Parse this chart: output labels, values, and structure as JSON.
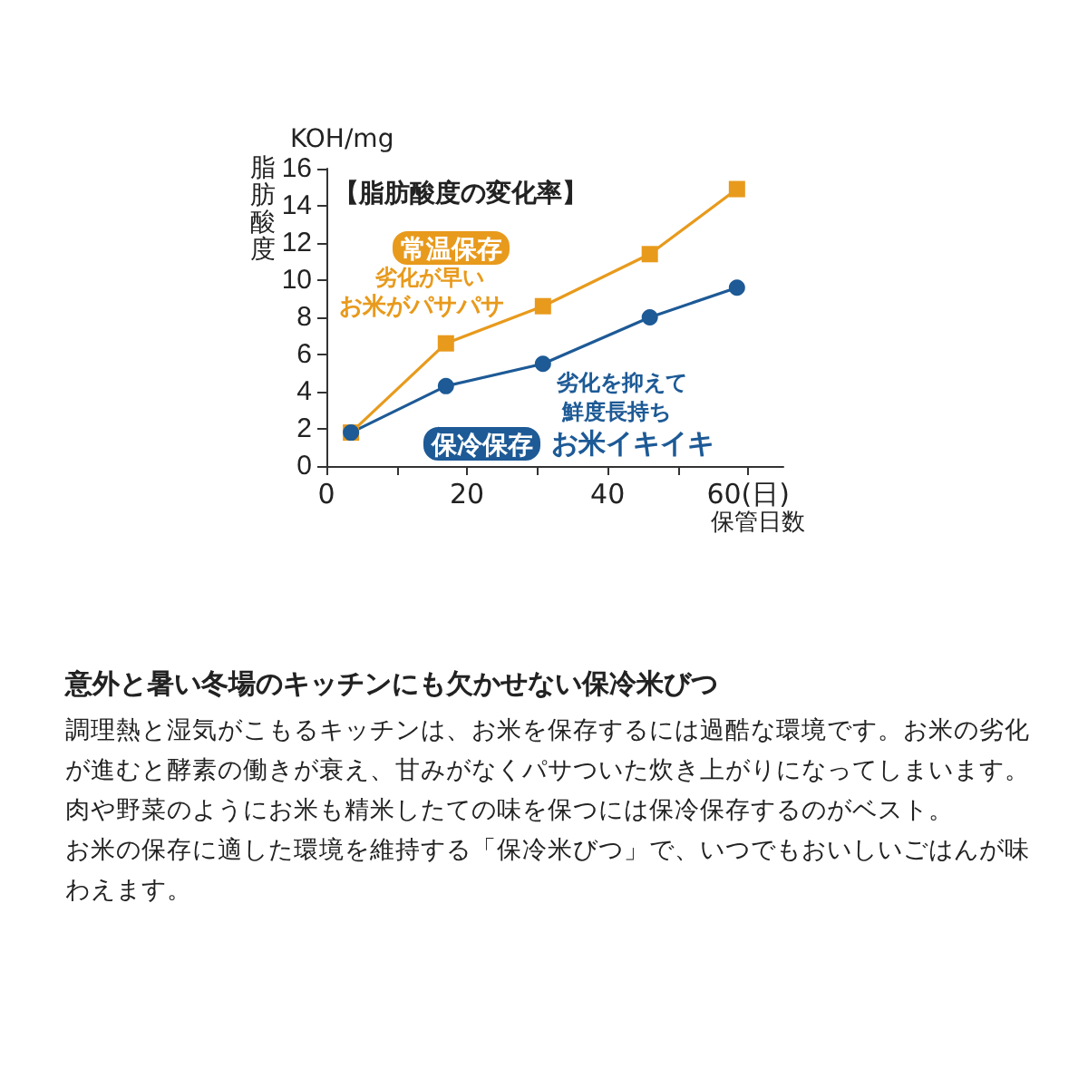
{
  "chart_data": {
    "type": "line",
    "title": "【脂肪酸度の変化率】",
    "xlabel": "保管日数",
    "ylabel": "脂肪酸度",
    "x": [
      3.5,
      17,
      30.8,
      46,
      58.4
    ],
    "series": [
      {
        "name": "常温保存",
        "color": "#e89a1c",
        "marker": "square",
        "values": [
          1.8,
          6.6,
          8.6,
          11.4,
          14.9
        ]
      },
      {
        "name": "保冷保存",
        "color": "#1d5a96",
        "marker": "circle",
        "values": [
          1.8,
          4.3,
          5.5,
          8.0,
          9.6
        ]
      }
    ],
    "xlim": [
      0,
      65
    ],
    "xticks": [
      0,
      {
        "value": 10,
        "label": null
      },
      20,
      {
        "value": 30,
        "label": null
      },
      40,
      {
        "value": 50,
        "label": null
      },
      {
        "value": 60,
        "label": "60(日)"
      }
    ],
    "ylim": [
      0,
      16
    ],
    "yticks": [
      0,
      2,
      4,
      6,
      8,
      10,
      12,
      14,
      16
    ],
    "grid": false,
    "legend": false,
    "line_style": "solid",
    "annotations": [
      "KOH/mg",
      "劣化が早い",
      "お米がパサパサ",
      "劣化を抑えて",
      "鮮度長持ち",
      "お米イキイキ",
      "意外と暑い冬場のキッチンにも欠かせない保冷米びつ",
      "調理熱と湿気がこもるキッチンは、お米を保存するには過酷な環境です。お米の劣化が進むと酵素の働きが衰え、甘みがなくパサついた炊き上がりになってしまいます。肉や野菜のようにお米も精米したての味を保つには保冷保存するのがベスト。",
      "お米の保存に適した環境を維持する「保冷米びつ」で、いつでもおいしいごはんが味わえます。"
    ]
  }
}
